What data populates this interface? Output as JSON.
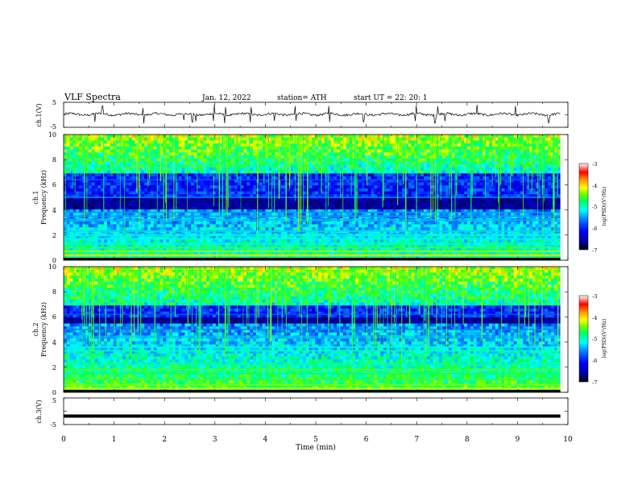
{
  "header": {
    "title": "VLF  Spectra",
    "date": "Jan.  12,  2022",
    "station": "station= ATH",
    "start": "start  UT  =    22: 20: 1"
  },
  "chart_data": [
    {
      "type": "line",
      "name": "ch1-waveform",
      "ylabel": "ch.1(V)",
      "ylim": [
        -5,
        5
      ],
      "yticks": [
        "5",
        "-5"
      ],
      "xlim": [
        0,
        10
      ],
      "signal_offset": 0.2,
      "spike_times": [
        0.62,
        0.77,
        1.58,
        2.38,
        2.55,
        2.62,
        2.98,
        3.2,
        3.71,
        4.18,
        4.6,
        5.27,
        5.95,
        6.98,
        7.36,
        7.42,
        7.56,
        8.2,
        8.96,
        9.62
      ]
    },
    {
      "type": "heatmap",
      "name": "ch1-spectrogram",
      "ylabel": "ch.1",
      "ylabel2": "Frequency  (kHz)",
      "ylim": [
        0,
        10
      ],
      "yticks": [
        "0",
        "2",
        "4",
        "6",
        "8",
        "10"
      ],
      "xlim": [
        0,
        9.85
      ],
      "colorbar": {
        "label": "log(PSD)(V²/Hz)",
        "range": [
          -7,
          -3
        ],
        "ticks": [
          "-3",
          "-4",
          "-5",
          "-6",
          "-7"
        ]
      },
      "bands_khz": [
        [
          0.4,
          -4.0
        ],
        [
          0.7,
          -4.3
        ],
        [
          1.0,
          -4.6
        ],
        [
          1.3,
          -5.0
        ],
        [
          1.7,
          -5.2
        ],
        [
          2.0,
          -5.2
        ],
        [
          2.3,
          -5.3
        ],
        [
          3.2,
          -5.4
        ],
        [
          3.5,
          -5.5
        ],
        [
          3.8,
          -5.5
        ],
        [
          5.0,
          -5.6
        ],
        [
          6.4,
          -5.8
        ]
      ],
      "dark_band_khz": [
        4.0,
        5.0
      ]
    },
    {
      "type": "heatmap",
      "name": "ch2-spectrogram",
      "ylabel": "ch.2",
      "ylabel2": "Frequency  (kHz)",
      "ylim": [
        0,
        10
      ],
      "yticks": [
        "0",
        "2",
        "4",
        "6",
        "8",
        "10"
      ],
      "xlim": [
        0,
        9.85
      ],
      "colorbar": {
        "label": "log(PSD)(V²/Hz)",
        "range": [
          -7,
          -3
        ],
        "ticks": [
          "-3",
          "-4",
          "-5",
          "-6",
          "-7"
        ]
      },
      "bands_khz": [
        [
          0.3,
          -4.2
        ],
        [
          0.6,
          -4.4
        ],
        [
          1.0,
          -4.6
        ],
        [
          1.5,
          -4.8
        ],
        [
          1.8,
          -4.5
        ],
        [
          2.2,
          -4.9
        ],
        [
          3.3,
          -5.0
        ],
        [
          3.6,
          -5.2
        ],
        [
          4.4,
          -5.4
        ],
        [
          5.0,
          -5.6
        ],
        [
          6.2,
          -5.8
        ]
      ],
      "dark_band_khz": [
        5.4,
        6.0
      ]
    },
    {
      "type": "line",
      "name": "ch3-waveform",
      "ylabel": "ch.3(V)",
      "ylim": [
        -5,
        5
      ],
      "yticks": [
        "5",
        "-5"
      ],
      "xlim": [
        0,
        10
      ],
      "signal_level": -1.8
    }
  ],
  "xaxis": {
    "label": "Time  (min)",
    "ticks": [
      "0",
      "1",
      "2",
      "3",
      "4",
      "5",
      "6",
      "7",
      "8",
      "9",
      "10"
    ]
  },
  "colors": {
    "ink": "#000000",
    "colormap": [
      "#000088",
      "#0000ff",
      "#0088ff",
      "#00ffff",
      "#00ff88",
      "#00ff00",
      "#aaff00",
      "#ffff00",
      "#ff8800",
      "#ff0000",
      "#ffffff"
    ]
  }
}
